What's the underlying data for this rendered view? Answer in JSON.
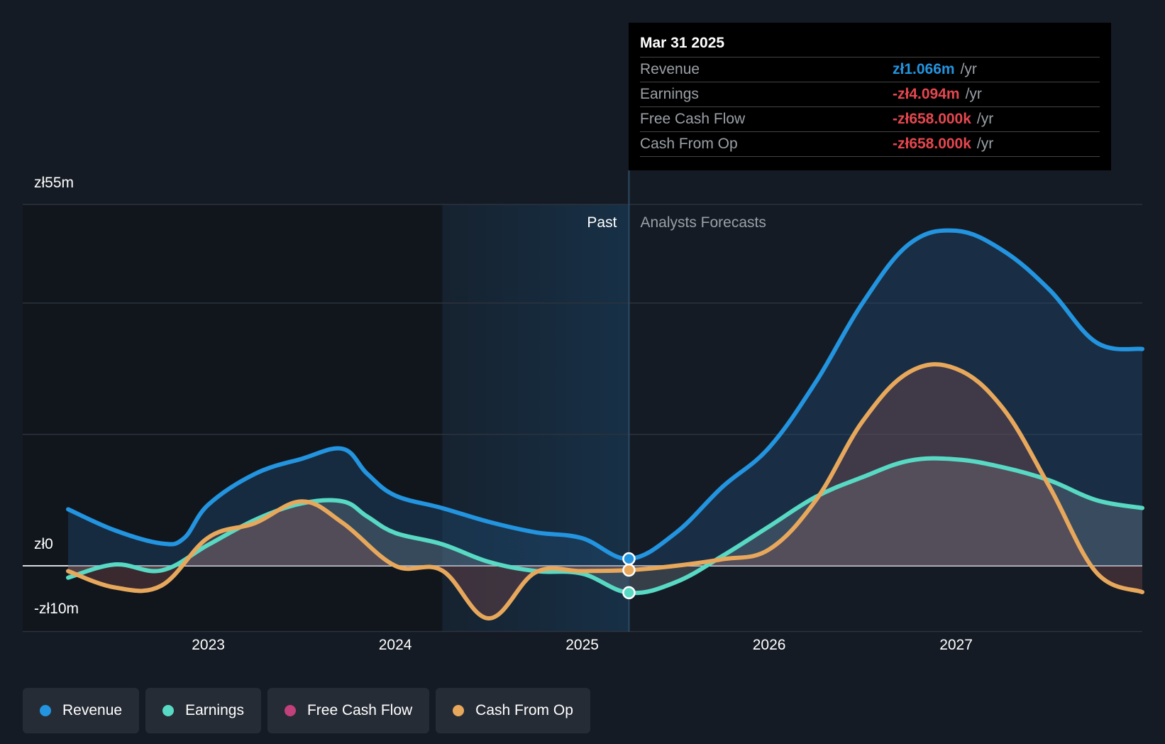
{
  "chart_data": {
    "type": "area",
    "currency": "zł",
    "y_labels": [
      "zł55m",
      "zł0",
      "-zł10m"
    ],
    "ylim": [
      -10,
      55
    ],
    "gridlines": [
      55,
      40,
      20,
      0,
      -10
    ],
    "xlim": [
      2022.0,
      2027.996
    ],
    "x_ticks": [
      {
        "value": 2023,
        "label": "2023"
      },
      {
        "value": 2024,
        "label": "2024"
      },
      {
        "value": 2025,
        "label": "2025"
      },
      {
        "value": 2026,
        "label": "2026"
      },
      {
        "value": 2027,
        "label": "2027"
      }
    ],
    "past_label": "Past",
    "forecast_label": "Analysts Forecasts",
    "past_region": [
      2024.25,
      2025.25
    ],
    "cursor_x": 2025.25,
    "series": [
      {
        "name": "Revenue",
        "color": "#2394df",
        "points": [
          [
            2022.25,
            8.6
          ],
          [
            2022.5,
            5.4
          ],
          [
            2022.75,
            3.4
          ],
          [
            2022.87,
            4.2
          ],
          [
            2023.0,
            9.3
          ],
          [
            2023.25,
            14.0
          ],
          [
            2023.5,
            16.3
          ],
          [
            2023.72,
            17.8
          ],
          [
            2023.85,
            14.0
          ],
          [
            2024.0,
            10.7
          ],
          [
            2024.25,
            8.8
          ],
          [
            2024.5,
            6.7
          ],
          [
            2024.75,
            5.1
          ],
          [
            2025.0,
            4.2
          ],
          [
            2025.25,
            1.066
          ],
          [
            2025.5,
            5.0
          ],
          [
            2025.75,
            12.0
          ],
          [
            2026.0,
            18.0
          ],
          [
            2026.25,
            28.0
          ],
          [
            2026.5,
            40.0
          ],
          [
            2026.75,
            49.0
          ],
          [
            2027.0,
            51.0
          ],
          [
            2027.25,
            48.0
          ],
          [
            2027.5,
            42.0
          ],
          [
            2027.75,
            34.0
          ],
          [
            2027.996,
            33.0
          ]
        ]
      },
      {
        "name": "Earnings",
        "color": "#58d9c4",
        "points": [
          [
            2022.25,
            -1.8
          ],
          [
            2022.5,
            0.2
          ],
          [
            2022.75,
            -0.7
          ],
          [
            2023.0,
            3.2
          ],
          [
            2023.25,
            7.0
          ],
          [
            2023.5,
            9.5
          ],
          [
            2023.72,
            9.8
          ],
          [
            2023.85,
            7.5
          ],
          [
            2024.0,
            5.0
          ],
          [
            2024.25,
            3.3
          ],
          [
            2024.5,
            0.6
          ],
          [
            2024.75,
            -0.8
          ],
          [
            2025.0,
            -1.2
          ],
          [
            2025.25,
            -4.094
          ],
          [
            2025.5,
            -2.5
          ],
          [
            2025.75,
            1.5
          ],
          [
            2026.0,
            6.0
          ],
          [
            2026.25,
            10.5
          ],
          [
            2026.5,
            13.5
          ],
          [
            2026.75,
            16.0
          ],
          [
            2027.0,
            16.2
          ],
          [
            2027.25,
            15.0
          ],
          [
            2027.5,
            13.0
          ],
          [
            2027.75,
            10.0
          ],
          [
            2027.996,
            8.8
          ]
        ]
      },
      {
        "name": "Free Cash Flow",
        "color": "#c2407b",
        "points": [
          [
            2022.25,
            -0.8
          ],
          [
            2022.5,
            -3.3
          ],
          [
            2022.75,
            -3.0
          ],
          [
            2023.0,
            4.3
          ],
          [
            2023.25,
            6.5
          ],
          [
            2023.5,
            9.8
          ],
          [
            2023.72,
            6.5
          ],
          [
            2024.0,
            0.0
          ],
          [
            2024.25,
            -0.7
          ],
          [
            2024.5,
            -8.0
          ],
          [
            2024.75,
            -1.0
          ],
          [
            2025.0,
            -0.8
          ],
          [
            2025.25,
            -0.658
          ],
          [
            2025.5,
            0.0
          ],
          [
            2025.75,
            1.0
          ],
          [
            2026.0,
            2.5
          ],
          [
            2026.25,
            10.0
          ],
          [
            2026.5,
            22.0
          ],
          [
            2026.75,
            29.5
          ],
          [
            2027.0,
            30.0
          ],
          [
            2027.25,
            24.0
          ],
          [
            2027.5,
            12.0
          ],
          [
            2027.75,
            -1.0
          ],
          [
            2027.996,
            -4.0
          ]
        ]
      },
      {
        "name": "Cash From Op",
        "color": "#e7a85c",
        "points": [
          [
            2022.25,
            -0.8
          ],
          [
            2022.5,
            -3.3
          ],
          [
            2022.75,
            -3.0
          ],
          [
            2023.0,
            4.3
          ],
          [
            2023.25,
            6.5
          ],
          [
            2023.5,
            9.8
          ],
          [
            2023.72,
            6.5
          ],
          [
            2024.0,
            0.0
          ],
          [
            2024.25,
            -0.7
          ],
          [
            2024.5,
            -8.0
          ],
          [
            2024.75,
            -1.0
          ],
          [
            2025.0,
            -0.8
          ],
          [
            2025.25,
            -0.658
          ],
          [
            2025.5,
            0.0
          ],
          [
            2025.75,
            1.0
          ],
          [
            2026.0,
            2.5
          ],
          [
            2026.25,
            10.0
          ],
          [
            2026.5,
            22.0
          ],
          [
            2026.75,
            29.5
          ],
          [
            2027.0,
            30.0
          ],
          [
            2027.25,
            24.0
          ],
          [
            2027.5,
            12.0
          ],
          [
            2027.75,
            -1.0
          ],
          [
            2027.996,
            -4.0
          ]
        ]
      }
    ]
  },
  "tooltip": {
    "date": "Mar 31 2025",
    "unit": "/yr",
    "rows": [
      {
        "label": "Revenue",
        "value": "zł1.066m",
        "color": "#2394df"
      },
      {
        "label": "Earnings",
        "value": "-zł4.094m",
        "color": "#e5474f"
      },
      {
        "label": "Free Cash Flow",
        "value": "-zł658.000k",
        "color": "#e5474f"
      },
      {
        "label": "Cash From Op",
        "value": "-zł658.000k",
        "color": "#e5474f"
      }
    ]
  },
  "legend": [
    {
      "label": "Revenue",
      "color": "#2394df"
    },
    {
      "label": "Earnings",
      "color": "#58d9c4"
    },
    {
      "label": "Free Cash Flow",
      "color": "#c2407b"
    },
    {
      "label": "Cash From Op",
      "color": "#e7a85c"
    }
  ]
}
